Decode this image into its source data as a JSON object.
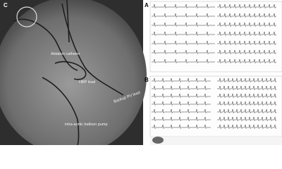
{
  "panels": [
    {
      "label": "C",
      "annotations": [
        "Ablation catheter",
        "HBP lead",
        "Backup RV lead",
        "intra-aortic balloon pump"
      ]
    },
    {
      "label": "A"
    },
    {
      "label": "B"
    }
  ]
}
